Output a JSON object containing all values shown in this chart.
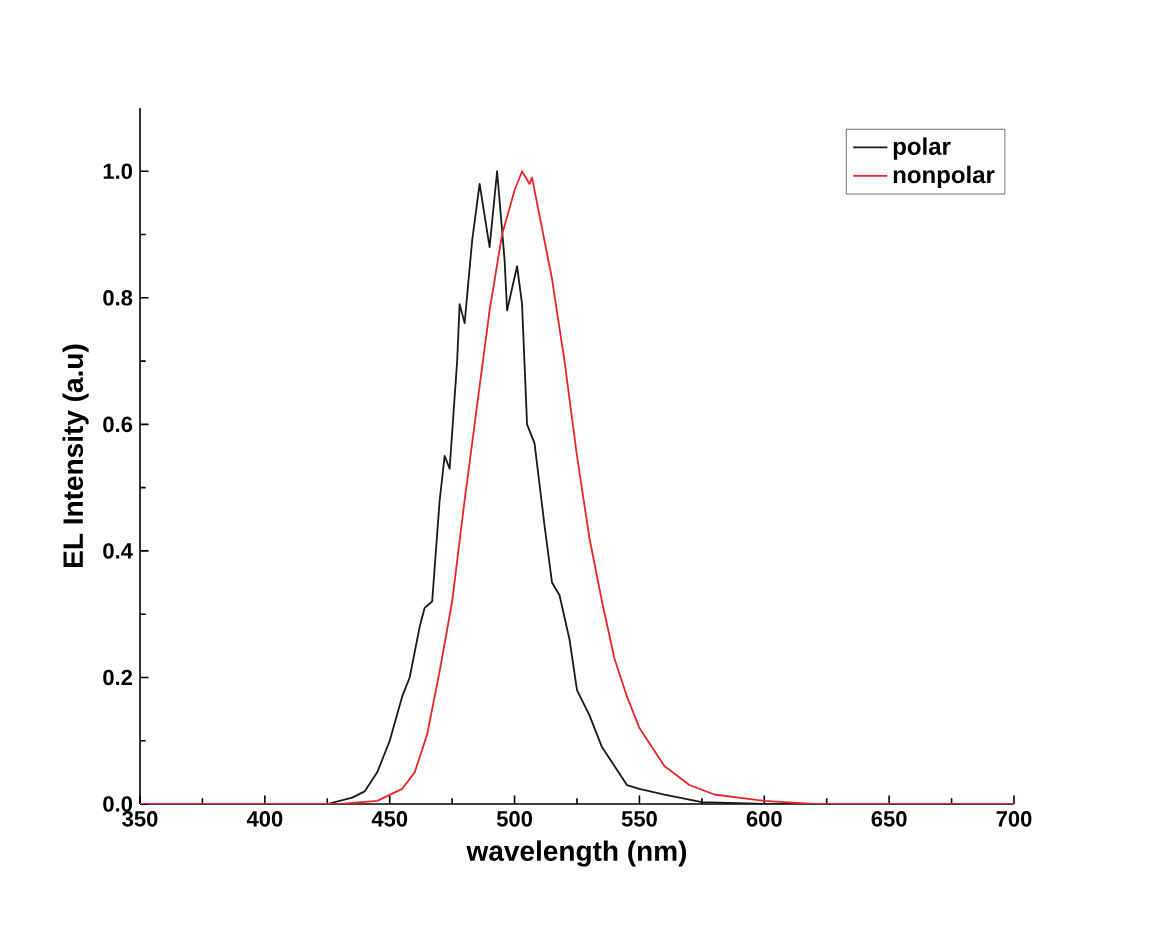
{
  "chart_data": {
    "type": "line",
    "xlabel": "wavelength (nm)",
    "ylabel": "EL Intensity (a.u)",
    "xlim": [
      350,
      700
    ],
    "ylim": [
      0,
      1.1
    ],
    "xticks": [
      350,
      400,
      450,
      500,
      550,
      600,
      650,
      700
    ],
    "yticks": [
      {
        "value": 0,
        "label": "0.0"
      },
      {
        "value": 0.2,
        "label": "0.2"
      },
      {
        "value": 0.4,
        "label": "0.4"
      },
      {
        "value": 0.6,
        "label": "0.6"
      },
      {
        "value": 0.8,
        "label": "0.8"
      },
      {
        "value": 1,
        "label": "1.0"
      }
    ],
    "legend": "top right",
    "grid": false,
    "marker": "none",
    "line_style": "solid",
    "series": [
      {
        "name": "polar",
        "color": "#1a1a1a",
        "x": [
          350,
          425,
          435,
          440,
          445,
          450,
          455,
          458,
          462,
          464,
          467,
          470,
          472,
          474,
          477,
          478,
          480,
          483,
          486,
          490,
          493,
          496,
          497,
          501,
          503,
          505,
          508,
          512,
          515,
          518,
          522,
          525,
          530,
          535,
          540,
          545,
          550,
          560,
          575,
          600,
          700
        ],
        "values": [
          0,
          0,
          0.01,
          0.02,
          0.05,
          0.1,
          0.17,
          0.2,
          0.28,
          0.31,
          0.32,
          0.48,
          0.55,
          0.53,
          0.7,
          0.79,
          0.76,
          0.89,
          0.98,
          0.88,
          1.0,
          0.86,
          0.78,
          0.85,
          0.79,
          0.6,
          0.57,
          0.44,
          0.35,
          0.33,
          0.26,
          0.18,
          0.14,
          0.09,
          0.06,
          0.03,
          0.024,
          0.015,
          0.003,
          0,
          0
        ]
      },
      {
        "name": "nonpolar",
        "color": "#e8262a",
        "x": [
          350,
          430,
          445,
          455,
          460,
          465,
          470,
          475,
          480,
          485,
          490,
          495,
          500,
          503,
          506,
          507,
          510,
          515,
          520,
          525,
          530,
          535,
          540,
          545,
          550,
          560,
          570,
          580,
          600,
          620,
          700
        ],
        "values": [
          0,
          0,
          0.005,
          0.024,
          0.05,
          0.11,
          0.21,
          0.32,
          0.48,
          0.63,
          0.78,
          0.9,
          0.97,
          1.0,
          0.98,
          0.99,
          0.93,
          0.83,
          0.7,
          0.55,
          0.42,
          0.32,
          0.23,
          0.17,
          0.12,
          0.06,
          0.03,
          0.015,
          0.005,
          0,
          0
        ]
      }
    ]
  }
}
